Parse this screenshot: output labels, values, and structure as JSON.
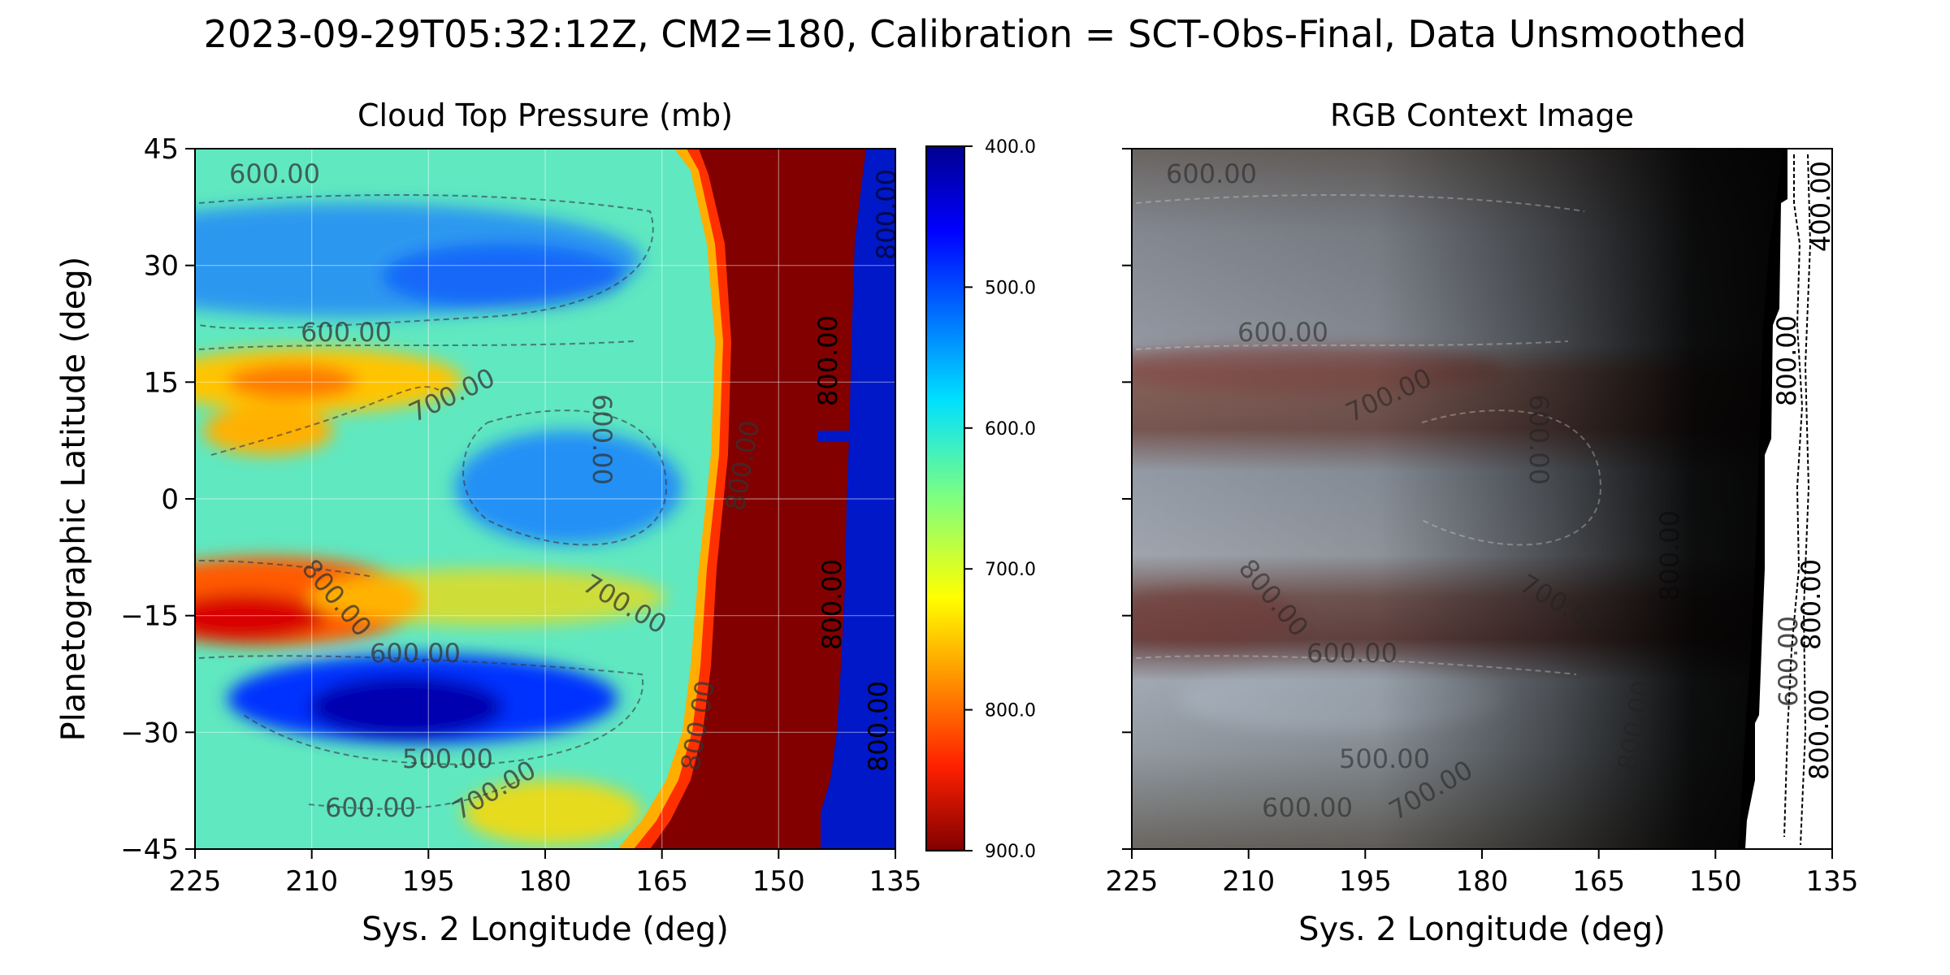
{
  "figure": {
    "suptitle": "2023-09-29T05:32:12Z, CM2=180, Calibration = SCT-Obs-Final, Data Unsmoothed"
  },
  "chart_data": [
    {
      "type": "heatmap",
      "title": "Cloud Top Pressure (mb)",
      "xlabel": "Sys. 2 Longitude (deg)",
      "ylabel": "Planetographic Latitude (deg)",
      "xlim": [
        225,
        135
      ],
      "ylim": [
        -45,
        45
      ],
      "xticks": [
        "225",
        "210",
        "195",
        "180",
        "165",
        "150",
        "135"
      ],
      "yticks": [
        "45",
        "30",
        "15",
        "0",
        "−15",
        "−30",
        "−45"
      ],
      "grid": true,
      "colormap": "jet",
      "colorbar": {
        "range": [
          400,
          900
        ],
        "ticks": [
          "400.0",
          "500.0",
          "600.0",
          "700.0",
          "800.0",
          "900.0"
        ],
        "reversed": true
      },
      "contour_levels": [
        500,
        600,
        700,
        800
      ],
      "contour_labels": [
        "600.00",
        "600.00",
        "700.00",
        "600.00",
        "800.00",
        "800.00",
        "700.00",
        "600.00",
        "500.00",
        "600.00",
        "700.00",
        "800.00",
        "800.00",
        "800.00",
        "800.00",
        "800.00"
      ]
    },
    {
      "type": "heatmap",
      "title": "RGB Context Image",
      "xlabel": "Sys. 2 Longitude (deg)",
      "xlim": [
        225,
        135
      ],
      "ylim": [
        -45,
        45
      ],
      "xticks": [
        "225",
        "210",
        "195",
        "180",
        "165",
        "150",
        "135"
      ],
      "contour_labels": [
        "600.00",
        "600.00",
        "700.00",
        "600.00",
        "800.00",
        "700.00",
        "600.00",
        "500.00",
        "600.00",
        "700.00",
        "800.00",
        "800.00",
        "800.00",
        "800.00",
        "400.00",
        "600.00",
        "800.00"
      ]
    }
  ]
}
